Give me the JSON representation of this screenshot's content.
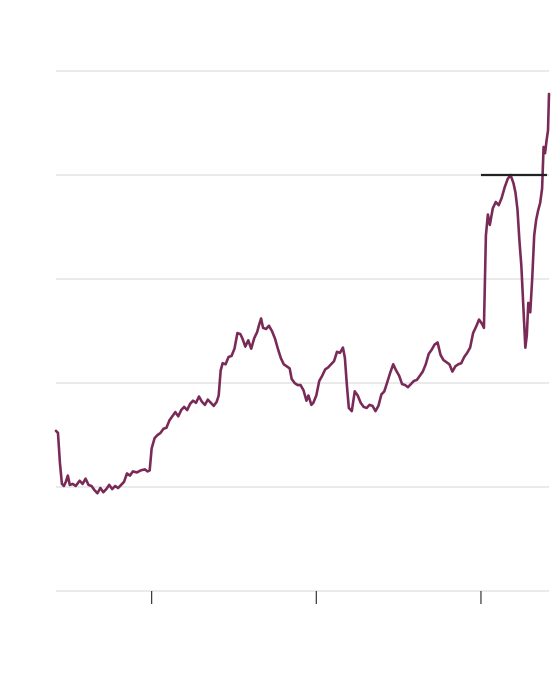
{
  "chart_data": {
    "type": "line",
    "title": "",
    "xlabel": "",
    "ylabel": "",
    "grid": true,
    "legend": "none",
    "colors": {
      "line": "#7a2a56",
      "reference": "#222222",
      "grid": "#d6d6d6"
    },
    "xlim": [
      0,
      100
    ],
    "ylim": [
      0,
      100
    ],
    "y_gridlines": [
      0,
      20,
      40,
      60,
      80,
      100
    ],
    "x_ticks": [
      19.4,
      52.8,
      86.2
    ],
    "reference_line": {
      "y": 80,
      "x_start": 86.2,
      "x_end": 99.6
    },
    "series": [
      {
        "values": [
          [
            0.0,
            30.8
          ],
          [
            0.4,
            30.4
          ],
          [
            0.8,
            24.6
          ],
          [
            1.2,
            20.6
          ],
          [
            1.6,
            20.2
          ],
          [
            2.0,
            21.0
          ],
          [
            2.4,
            22.2
          ],
          [
            2.8,
            20.4
          ],
          [
            3.4,
            20.6
          ],
          [
            4.0,
            20.2
          ],
          [
            4.8,
            21.2
          ],
          [
            5.4,
            20.6
          ],
          [
            6.0,
            21.6
          ],
          [
            6.6,
            20.4
          ],
          [
            7.2,
            20.2
          ],
          [
            7.8,
            19.4
          ],
          [
            8.4,
            18.8
          ],
          [
            9.0,
            19.8
          ],
          [
            9.6,
            19.0
          ],
          [
            10.2,
            19.6
          ],
          [
            10.8,
            20.4
          ],
          [
            11.4,
            19.6
          ],
          [
            12.0,
            20.2
          ],
          [
            12.6,
            19.8
          ],
          [
            13.2,
            20.4
          ],
          [
            13.8,
            21.0
          ],
          [
            14.4,
            22.6
          ],
          [
            15.0,
            22.2
          ],
          [
            15.6,
            23.0
          ],
          [
            16.4,
            22.8
          ],
          [
            17.2,
            23.2
          ],
          [
            18.0,
            23.4
          ],
          [
            18.6,
            23.0
          ],
          [
            19.0,
            23.2
          ],
          [
            19.4,
            27.4
          ],
          [
            20.0,
            29.4
          ],
          [
            20.6,
            30.0
          ],
          [
            21.2,
            30.4
          ],
          [
            21.8,
            31.2
          ],
          [
            22.4,
            31.4
          ],
          [
            23.0,
            32.8
          ],
          [
            23.6,
            33.6
          ],
          [
            24.2,
            34.4
          ],
          [
            24.8,
            33.6
          ],
          [
            25.4,
            34.8
          ],
          [
            26.0,
            35.4
          ],
          [
            26.6,
            34.8
          ],
          [
            27.2,
            36.0
          ],
          [
            27.8,
            36.6
          ],
          [
            28.4,
            36.2
          ],
          [
            29.0,
            37.4
          ],
          [
            29.6,
            36.4
          ],
          [
            30.2,
            35.8
          ],
          [
            30.8,
            36.8
          ],
          [
            31.4,
            36.2
          ],
          [
            32.0,
            35.6
          ],
          [
            32.6,
            36.4
          ],
          [
            33.0,
            37.6
          ],
          [
            33.4,
            42.4
          ],
          [
            33.8,
            43.8
          ],
          [
            34.4,
            43.6
          ],
          [
            35.0,
            45.0
          ],
          [
            35.6,
            45.2
          ],
          [
            36.2,
            46.6
          ],
          [
            36.8,
            49.6
          ],
          [
            37.4,
            49.4
          ],
          [
            37.8,
            48.6
          ],
          [
            38.4,
            47.0
          ],
          [
            39.0,
            48.2
          ],
          [
            39.6,
            46.6
          ],
          [
            40.2,
            48.6
          ],
          [
            40.8,
            49.8
          ],
          [
            41.2,
            51.2
          ],
          [
            41.6,
            52.4
          ],
          [
            42.0,
            50.6
          ],
          [
            42.6,
            50.4
          ],
          [
            43.2,
            51.0
          ],
          [
            43.8,
            50.0
          ],
          [
            44.4,
            48.6
          ],
          [
            45.0,
            46.6
          ],
          [
            45.6,
            44.8
          ],
          [
            46.2,
            43.6
          ],
          [
            46.8,
            43.2
          ],
          [
            47.4,
            42.8
          ],
          [
            47.8,
            40.8
          ],
          [
            48.4,
            40.0
          ],
          [
            49.0,
            39.6
          ],
          [
            49.6,
            39.6
          ],
          [
            50.2,
            38.6
          ],
          [
            50.8,
            36.6
          ],
          [
            51.2,
            37.6
          ],
          [
            51.8,
            35.8
          ],
          [
            52.2,
            36.2
          ],
          [
            52.8,
            37.6
          ],
          [
            53.4,
            40.4
          ],
          [
            54.0,
            41.4
          ],
          [
            54.6,
            42.6
          ],
          [
            55.2,
            43.0
          ],
          [
            55.8,
            43.6
          ],
          [
            56.4,
            44.2
          ],
          [
            57.0,
            46.0
          ],
          [
            57.6,
            45.8
          ],
          [
            58.2,
            46.8
          ],
          [
            58.6,
            44.8
          ],
          [
            59.0,
            39.6
          ],
          [
            59.4,
            35.2
          ],
          [
            60.0,
            34.6
          ],
          [
            60.6,
            38.4
          ],
          [
            61.2,
            37.6
          ],
          [
            61.8,
            36.2
          ],
          [
            62.4,
            35.4
          ],
          [
            63.0,
            35.2
          ],
          [
            63.6,
            35.8
          ],
          [
            64.2,
            35.6
          ],
          [
            64.8,
            34.6
          ],
          [
            65.4,
            35.6
          ],
          [
            66.0,
            37.8
          ],
          [
            66.6,
            38.4
          ],
          [
            67.2,
            40.2
          ],
          [
            67.8,
            42.0
          ],
          [
            68.4,
            43.6
          ],
          [
            69.0,
            42.4
          ],
          [
            69.6,
            41.4
          ],
          [
            70.2,
            39.8
          ],
          [
            70.8,
            39.6
          ],
          [
            71.4,
            39.2
          ],
          [
            72.0,
            39.8
          ],
          [
            72.6,
            40.4
          ],
          [
            73.2,
            40.6
          ],
          [
            73.8,
            41.4
          ],
          [
            74.4,
            42.2
          ],
          [
            75.0,
            43.6
          ],
          [
            75.6,
            45.6
          ],
          [
            76.2,
            46.4
          ],
          [
            76.8,
            47.4
          ],
          [
            77.4,
            47.8
          ],
          [
            78.0,
            45.4
          ],
          [
            78.6,
            44.4
          ],
          [
            79.2,
            44.0
          ],
          [
            79.8,
            43.6
          ],
          [
            80.4,
            42.2
          ],
          [
            81.0,
            43.2
          ],
          [
            81.6,
            43.6
          ],
          [
            82.2,
            43.8
          ],
          [
            82.8,
            45.0
          ],
          [
            83.4,
            45.8
          ],
          [
            84.0,
            46.8
          ],
          [
            84.6,
            49.6
          ],
          [
            85.2,
            50.8
          ],
          [
            85.8,
            52.2
          ],
          [
            86.4,
            51.4
          ],
          [
            86.8,
            50.6
          ],
          [
            87.2,
            68.4
          ],
          [
            87.6,
            72.4
          ],
          [
            88.0,
            70.4
          ],
          [
            88.6,
            73.6
          ],
          [
            89.2,
            74.8
          ],
          [
            89.8,
            74.2
          ],
          [
            90.4,
            75.6
          ],
          [
            91.0,
            77.6
          ],
          [
            91.6,
            79.2
          ],
          [
            92.2,
            80.0
          ],
          [
            92.8,
            78.4
          ],
          [
            93.2,
            76.6
          ],
          [
            93.6,
            73.4
          ],
          [
            94.0,
            67.4
          ],
          [
            94.4,
            62.4
          ],
          [
            94.8,
            54.6
          ],
          [
            95.2,
            46.8
          ],
          [
            95.5,
            49.2
          ],
          [
            95.8,
            55.4
          ],
          [
            96.2,
            53.6
          ],
          [
            96.6,
            60.2
          ],
          [
            97.0,
            68.4
          ],
          [
            97.4,
            71.4
          ],
          [
            97.8,
            73.2
          ],
          [
            98.2,
            74.6
          ],
          [
            98.6,
            77.4
          ],
          [
            98.9,
            85.4
          ],
          [
            99.2,
            84.2
          ],
          [
            99.5,
            86.6
          ],
          [
            99.8,
            88.6
          ],
          [
            100.0,
            95.6
          ]
        ]
      }
    ]
  }
}
